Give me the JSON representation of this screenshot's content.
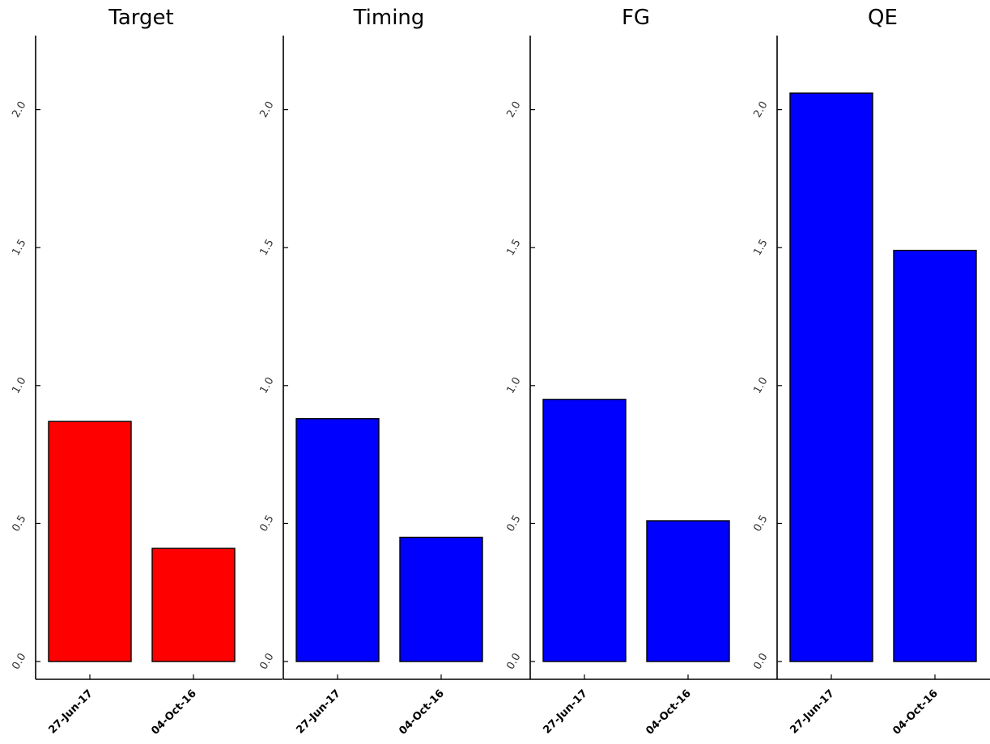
{
  "chart_data": [
    {
      "type": "bar",
      "title": "Target",
      "categories": [
        "27-Jun-17",
        "04-Oct-16"
      ],
      "values": [
        0.87,
        0.41
      ],
      "color": "#ff0000",
      "ylim": [
        0,
        2.27
      ],
      "yticks": [
        0.0,
        0.5,
        1.0,
        1.5,
        2.0
      ],
      "ytick_labels": [
        "0.0",
        "0.5",
        "1.0",
        "1.5",
        "2.0"
      ],
      "xlabel": "",
      "ylabel": "",
      "grid": false
    },
    {
      "type": "bar",
      "title": "Timing",
      "categories": [
        "27-Jun-17",
        "04-Oct-16"
      ],
      "values": [
        0.88,
        0.45
      ],
      "color": "#0000ff",
      "ylim": [
        0,
        2.27
      ],
      "yticks": [
        0.0,
        0.5,
        1.0,
        1.5,
        2.0
      ],
      "ytick_labels": [
        "0.0",
        "0.5",
        "1.0",
        "1.5",
        "2.0"
      ],
      "xlabel": "",
      "ylabel": "",
      "grid": false
    },
    {
      "type": "bar",
      "title": "FG",
      "categories": [
        "27-Jun-17",
        "04-Oct-16"
      ],
      "values": [
        0.95,
        0.51
      ],
      "color": "#0000ff",
      "ylim": [
        0,
        2.27
      ],
      "yticks": [
        0.0,
        0.5,
        1.0,
        1.5,
        2.0
      ],
      "ytick_labels": [
        "0.0",
        "0.5",
        "1.0",
        "1.5",
        "2.0"
      ],
      "xlabel": "",
      "ylabel": "",
      "grid": false
    },
    {
      "type": "bar",
      "title": "QE",
      "categories": [
        "27-Jun-17",
        "04-Oct-16"
      ],
      "values": [
        2.06,
        1.49
      ],
      "color": "#0000ff",
      "ylim": [
        0,
        2.27
      ],
      "yticks": [
        0.0,
        0.5,
        1.0,
        1.5,
        2.0
      ],
      "ytick_labels": [
        "0.0",
        "0.5",
        "1.0",
        "1.5",
        "2.0"
      ],
      "xlabel": "",
      "ylabel": "",
      "grid": false
    }
  ]
}
